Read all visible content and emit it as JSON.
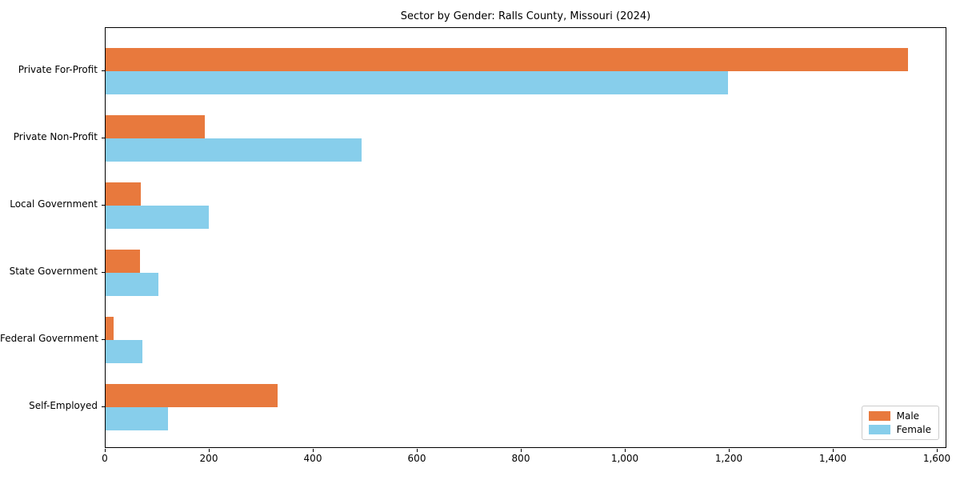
{
  "chart_data": {
    "type": "bar",
    "orientation": "horizontal",
    "title": "Sector by Gender: Ralls County, Missouri (2024)",
    "categories": [
      "Private For-Profit",
      "Private Non-Profit",
      "Local Government",
      "State Government",
      "Federal Government",
      "Self-Employed"
    ],
    "series": [
      {
        "name": "Male",
        "color": "#e8793d",
        "values": [
          1542,
          191,
          68,
          66,
          15,
          331
        ]
      },
      {
        "name": "Female",
        "color": "#87ceeb",
        "values": [
          1197,
          492,
          198,
          102,
          71,
          120
        ]
      }
    ],
    "xlabel": "",
    "ylabel": "",
    "xlim": [
      0,
      1618
    ],
    "xticks": {
      "values": [
        0,
        200,
        400,
        600,
        800,
        1000,
        1200,
        1400,
        1600
      ],
      "labels": [
        "0",
        "200",
        "400",
        "600",
        "800",
        "1,000",
        "1,200",
        "1,400",
        "1,600"
      ]
    },
    "grid": false,
    "legend_position": "lower right"
  }
}
